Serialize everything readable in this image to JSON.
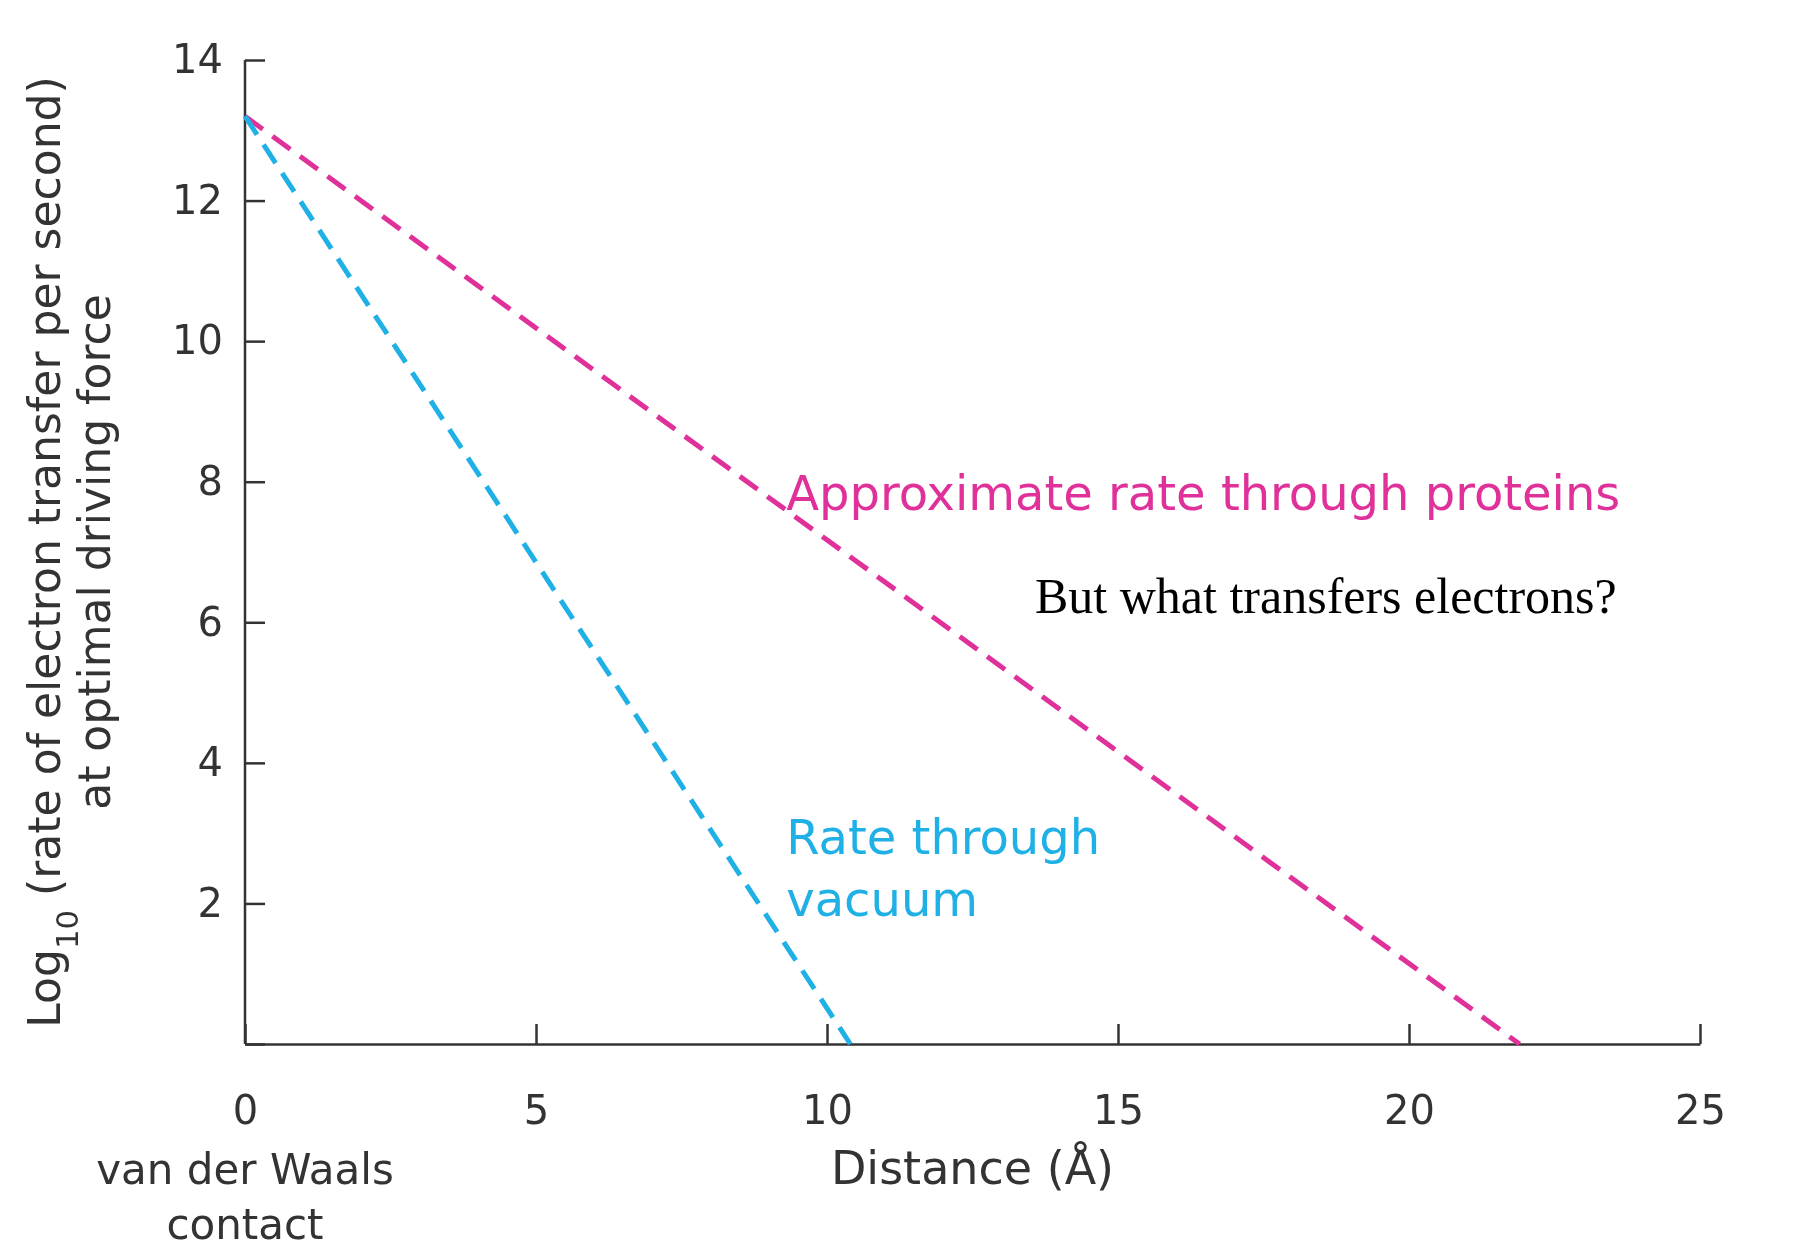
{
  "chart_data": {
    "type": "line",
    "xlabel": "Distance (Å)",
    "ylabel": "Log$_{10}$ (rate of electron transfer per second)\nat optimal driving force",
    "xlim": [
      0,
      25
    ],
    "xticks": [
      0,
      5,
      10,
      15,
      20,
      25
    ],
    "ylim": [
      0,
      14
    ],
    "yticks": [
      {
        "value": 0,
        "label": null
      },
      2,
      4,
      6,
      8,
      10,
      12,
      14
    ],
    "line_style": "dashed",
    "marker": "none",
    "series": [
      {
        "name": "Approximate rate through proteins",
        "color": "#e0319a",
        "x": [
          0,
          21.9
        ],
        "values": [
          13.2,
          0
        ]
      },
      {
        "name": "Rate through\nvacuum",
        "color": "#1fb0e6",
        "x": [
          0,
          10.4
        ],
        "values": [
          13.2,
          0
        ]
      }
    ],
    "annotations": [
      "van der Waals\ncontact",
      "But what transfers electrons?"
    ]
  }
}
